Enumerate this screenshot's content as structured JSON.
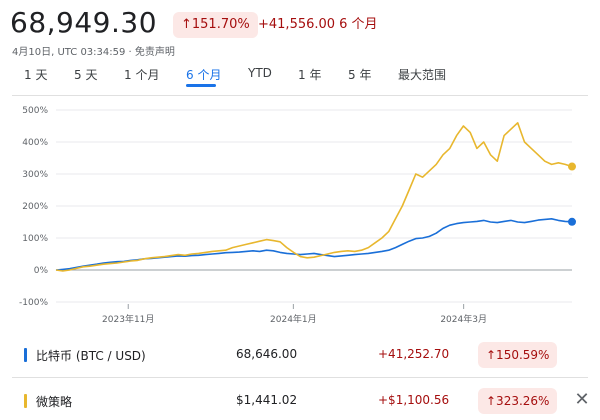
{
  "header": {
    "price": "68,949.30",
    "pct_change": "↑151.70%",
    "abs_change": "+41,556.00",
    "period": "6 个月",
    "timestamp": "4月10日, UTC 03:34:59 · 免责声明"
  },
  "tabs": [
    "1 天",
    "5 天",
    "1 个月",
    "6 个月",
    "YTD",
    "1 年",
    "5 年",
    "最大范围"
  ],
  "active_tab": "6 个月",
  "colors": {
    "btc": "#1a6fd8",
    "mstr": "#e8b72e",
    "up": "#a50e0e",
    "up_bg": "#fce8e6",
    "accent": "#1a73e8"
  },
  "chart_data": {
    "type": "line",
    "y_unit": "%",
    "y_ticks": [
      "500%",
      "400%",
      "300%",
      "200%",
      "100%",
      "0%",
      "-100%"
    ],
    "ylim": [
      -100,
      500
    ],
    "x_ticks": [
      "2023年11月",
      "2024年1月",
      "2024年3月"
    ],
    "series": [
      {
        "name": "比特币 (BTC / USD)",
        "color": "#1a6fd8",
        "values": [
          0,
          2,
          4,
          8,
          12,
          15,
          18,
          22,
          24,
          26,
          27,
          30,
          32,
          35,
          36,
          38,
          40,
          42,
          44,
          43,
          45,
          46,
          48,
          50,
          52,
          54,
          55,
          56,
          58,
          60,
          58,
          62,
          60,
          55,
          52,
          50,
          48,
          50,
          52,
          48,
          45,
          42,
          44,
          46,
          48,
          50,
          52,
          55,
          58,
          62,
          70,
          80,
          90,
          98,
          100,
          105,
          115,
          130,
          140,
          145,
          148,
          150,
          152,
          155,
          150,
          148,
          152,
          155,
          150,
          148,
          152,
          156,
          158,
          160,
          155,
          152,
          150.59
        ]
      },
      {
        "name": "微策略",
        "color": "#e8b72e",
        "values": [
          0,
          -3,
          0,
          5,
          10,
          12,
          15,
          18,
          20,
          22,
          25,
          28,
          30,
          35,
          38,
          40,
          42,
          45,
          48,
          46,
          50,
          52,
          55,
          58,
          60,
          62,
          70,
          75,
          80,
          85,
          90,
          95,
          92,
          88,
          70,
          55,
          42,
          38,
          40,
          45,
          50,
          55,
          58,
          60,
          58,
          62,
          70,
          85,
          100,
          120,
          160,
          200,
          250,
          300,
          290,
          310,
          330,
          360,
          380,
          420,
          450,
          430,
          380,
          400,
          360,
          340,
          420,
          440,
          460,
          400,
          380,
          360,
          340,
          330,
          335,
          330,
          323.26
        ]
      }
    ]
  },
  "comparison": [
    {
      "swatch": "#1a6fd8",
      "name": "比特币 (BTC / USD)",
      "value": "68,646.00",
      "abs": "+41,252.70",
      "pct": "↑150.59%"
    },
    {
      "swatch": "#e8b72e",
      "name": "微策略",
      "value": "$1,441.02",
      "abs": "+$1,100.56",
      "pct": "↑323.26%"
    }
  ]
}
